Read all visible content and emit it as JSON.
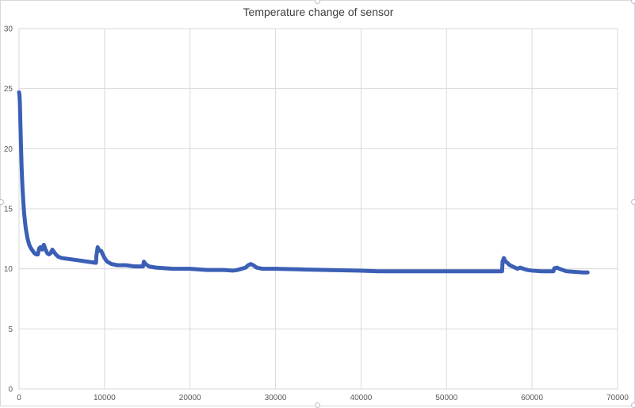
{
  "chart_data": {
    "type": "line",
    "title": "Temperature change of sensor",
    "xlabel": "",
    "ylabel": "",
    "xlim": [
      0,
      70000
    ],
    "ylim": [
      0,
      30
    ],
    "x_ticks": [
      0,
      10000,
      20000,
      30000,
      40000,
      50000,
      60000,
      70000
    ],
    "y_ticks": [
      0,
      5,
      10,
      15,
      20,
      25,
      30
    ],
    "grid": true,
    "legend": "none",
    "colors": {
      "series": "#3b5fb5",
      "grid": "#d9d9d9",
      "text": "#595959",
      "title": "#404040"
    },
    "series": [
      {
        "values": [
          [
            0,
            24.7
          ],
          [
            50,
            24.5
          ],
          [
            100,
            23.8
          ],
          [
            200,
            21.0
          ],
          [
            300,
            18.5
          ],
          [
            400,
            16.8
          ],
          [
            500,
            15.6
          ],
          [
            600,
            14.6
          ],
          [
            700,
            13.9
          ],
          [
            800,
            13.3
          ],
          [
            900,
            12.9
          ],
          [
            1000,
            12.5
          ],
          [
            1200,
            12.0
          ],
          [
            1400,
            11.7
          ],
          [
            1600,
            11.5
          ],
          [
            1800,
            11.3
          ],
          [
            2000,
            11.2
          ],
          [
            2200,
            11.2
          ],
          [
            2350,
            11.7
          ],
          [
            2500,
            11.8
          ],
          [
            2700,
            11.6
          ],
          [
            2900,
            12.0
          ],
          [
            3100,
            11.6
          ],
          [
            3300,
            11.3
          ],
          [
            3500,
            11.2
          ],
          [
            3700,
            11.3
          ],
          [
            3900,
            11.6
          ],
          [
            4100,
            11.4
          ],
          [
            4300,
            11.2
          ],
          [
            4600,
            11.0
          ],
          [
            5000,
            10.9
          ],
          [
            6000,
            10.8
          ],
          [
            7000,
            10.7
          ],
          [
            8000,
            10.6
          ],
          [
            9000,
            10.5
          ],
          [
            9050,
            11.1
          ],
          [
            9200,
            11.8
          ],
          [
            9400,
            11.5
          ],
          [
            9600,
            11.5
          ],
          [
            9800,
            11.2
          ],
          [
            10000,
            10.9
          ],
          [
            10300,
            10.6
          ],
          [
            10800,
            10.4
          ],
          [
            11500,
            10.3
          ],
          [
            12500,
            10.3
          ],
          [
            13500,
            10.2
          ],
          [
            14500,
            10.2
          ],
          [
            14600,
            10.6
          ],
          [
            14800,
            10.4
          ],
          [
            15200,
            10.2
          ],
          [
            16000,
            10.1
          ],
          [
            18000,
            10.0
          ],
          [
            20000,
            10.0
          ],
          [
            22000,
            9.9
          ],
          [
            24000,
            9.9
          ],
          [
            25000,
            9.85
          ],
          [
            25500,
            9.9
          ],
          [
            26000,
            10.0
          ],
          [
            26500,
            10.1
          ],
          [
            26800,
            10.3
          ],
          [
            27100,
            10.4
          ],
          [
            27400,
            10.3
          ],
          [
            27800,
            10.1
          ],
          [
            28500,
            10.0
          ],
          [
            30000,
            10.0
          ],
          [
            33000,
            9.95
          ],
          [
            36000,
            9.9
          ],
          [
            40000,
            9.85
          ],
          [
            42000,
            9.8
          ],
          [
            45000,
            9.8
          ],
          [
            48000,
            9.8
          ],
          [
            52000,
            9.8
          ],
          [
            56500,
            9.8
          ],
          [
            56550,
            10.6
          ],
          [
            56700,
            10.9
          ],
          [
            56900,
            10.6
          ],
          [
            57100,
            10.5
          ],
          [
            57400,
            10.3
          ],
          [
            57700,
            10.2
          ],
          [
            58000,
            10.1
          ],
          [
            58300,
            10.0
          ],
          [
            58600,
            10.1
          ],
          [
            59000,
            10.0
          ],
          [
            59500,
            9.9
          ],
          [
            60000,
            9.85
          ],
          [
            61000,
            9.8
          ],
          [
            62000,
            9.8
          ],
          [
            62500,
            9.8
          ],
          [
            62600,
            10.05
          ],
          [
            62900,
            10.1
          ],
          [
            63200,
            10.0
          ],
          [
            63600,
            9.9
          ],
          [
            64000,
            9.8
          ],
          [
            65000,
            9.75
          ],
          [
            66000,
            9.7
          ],
          [
            66500,
            9.7
          ]
        ]
      }
    ]
  }
}
